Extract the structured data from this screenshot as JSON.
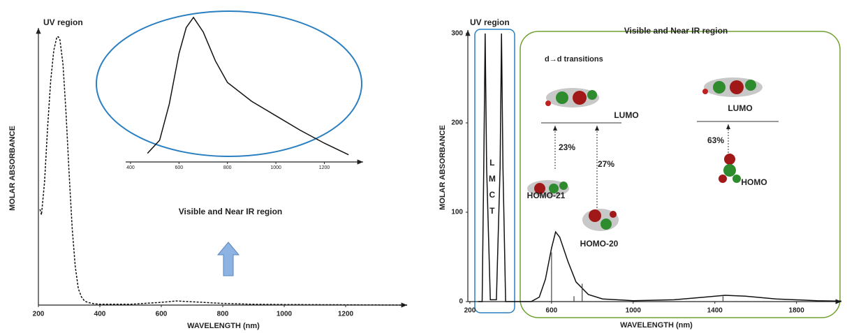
{
  "chart_data": [
    {
      "type": "line",
      "y_label": "MOLAR ABSORBANCE",
      "x_label": "WAVELENGTH (nm)",
      "annotations": [
        "UV region",
        "Visible and Near IR region"
      ],
      "x": [
        205,
        210,
        220,
        230,
        240,
        250,
        260,
        265,
        270,
        280,
        290,
        300,
        310,
        320,
        330,
        340,
        350,
        360,
        380,
        400,
        500,
        600,
        650,
        700,
        800,
        900,
        1000,
        1200,
        1400
      ],
      "series": [
        {
          "color": "#111111",
          "values": [
            35,
            33,
            45,
            65,
            82,
            93,
            98,
            98,
            97,
            88,
            70,
            48,
            28,
            14,
            6,
            3,
            1.5,
            1,
            0.5,
            0.3,
            0.3,
            1,
            1.5,
            1.2,
            0.6,
            0.3,
            0.2,
            0.1,
            0
          ]
        }
      ],
      "line_style": "dashed",
      "xlim": [
        200,
        1400
      ],
      "xticks": [
        200,
        400,
        600,
        800,
        1000,
        1200
      ],
      "ylim": [
        0,
        100
      ]
    },
    {
      "type": "line",
      "x": [
        470,
        520,
        560,
        600,
        630,
        660,
        700,
        750,
        800,
        900,
        1000,
        1100,
        1200,
        1300
      ],
      "series": [
        {
          "color": "#111111",
          "values": [
            6,
            15,
            40,
            75,
            93,
            100,
            90,
            70,
            55,
            42,
            32,
            22,
            13,
            5
          ]
        }
      ],
      "line_style": "solid",
      "xlim": [
        380,
        1360
      ],
      "xticks": [
        400,
        600,
        800,
        1000,
        1200
      ],
      "ylim": [
        0,
        100
      ],
      "frame_color": "#2a7fc0"
    },
    {
      "type": "line",
      "y_label": "MOLAR ABSORBANCE",
      "x_label": "WAVELENGTH (nm)",
      "annotations": [
        "UV region",
        "Visible and Near IR region",
        "d→d transitions",
        "LMCT",
        "LUMO",
        "LUMO",
        "HOMO",
        "HOMO-21",
        "HOMO-20",
        "23%",
        "27%",
        "63%"
      ],
      "x": [
        240,
        260,
        268,
        275,
        282,
        300,
        330,
        348,
        355,
        362,
        375,
        500,
        540,
        570,
        600,
        620,
        640,
        680,
        720,
        780,
        850,
        1000,
        1200,
        1350,
        1450,
        1550,
        1700,
        1900,
        2020
      ],
      "series": [
        {
          "color": "#111111",
          "values": [
            0,
            0,
            150,
            300,
            150,
            2,
            2,
            150,
            300,
            150,
            0,
            0,
            5,
            25,
            60,
            78,
            72,
            45,
            22,
            8,
            3,
            1,
            2,
            5,
            7,
            6,
            3,
            1,
            0.5
          ]
        }
      ],
      "sticks": {
        "color": "#444444",
        "x": [
          600,
          710,
          750,
          1440
        ],
        "values": [
          55,
          6,
          20,
          6
        ]
      },
      "line_style": "solid",
      "xlim": [
        190,
        2020
      ],
      "xticks": [
        200,
        600,
        1000,
        1400,
        1800
      ],
      "ylim": [
        0,
        300
      ],
      "yticks": [
        0,
        100,
        200,
        300
      ]
    }
  ]
}
